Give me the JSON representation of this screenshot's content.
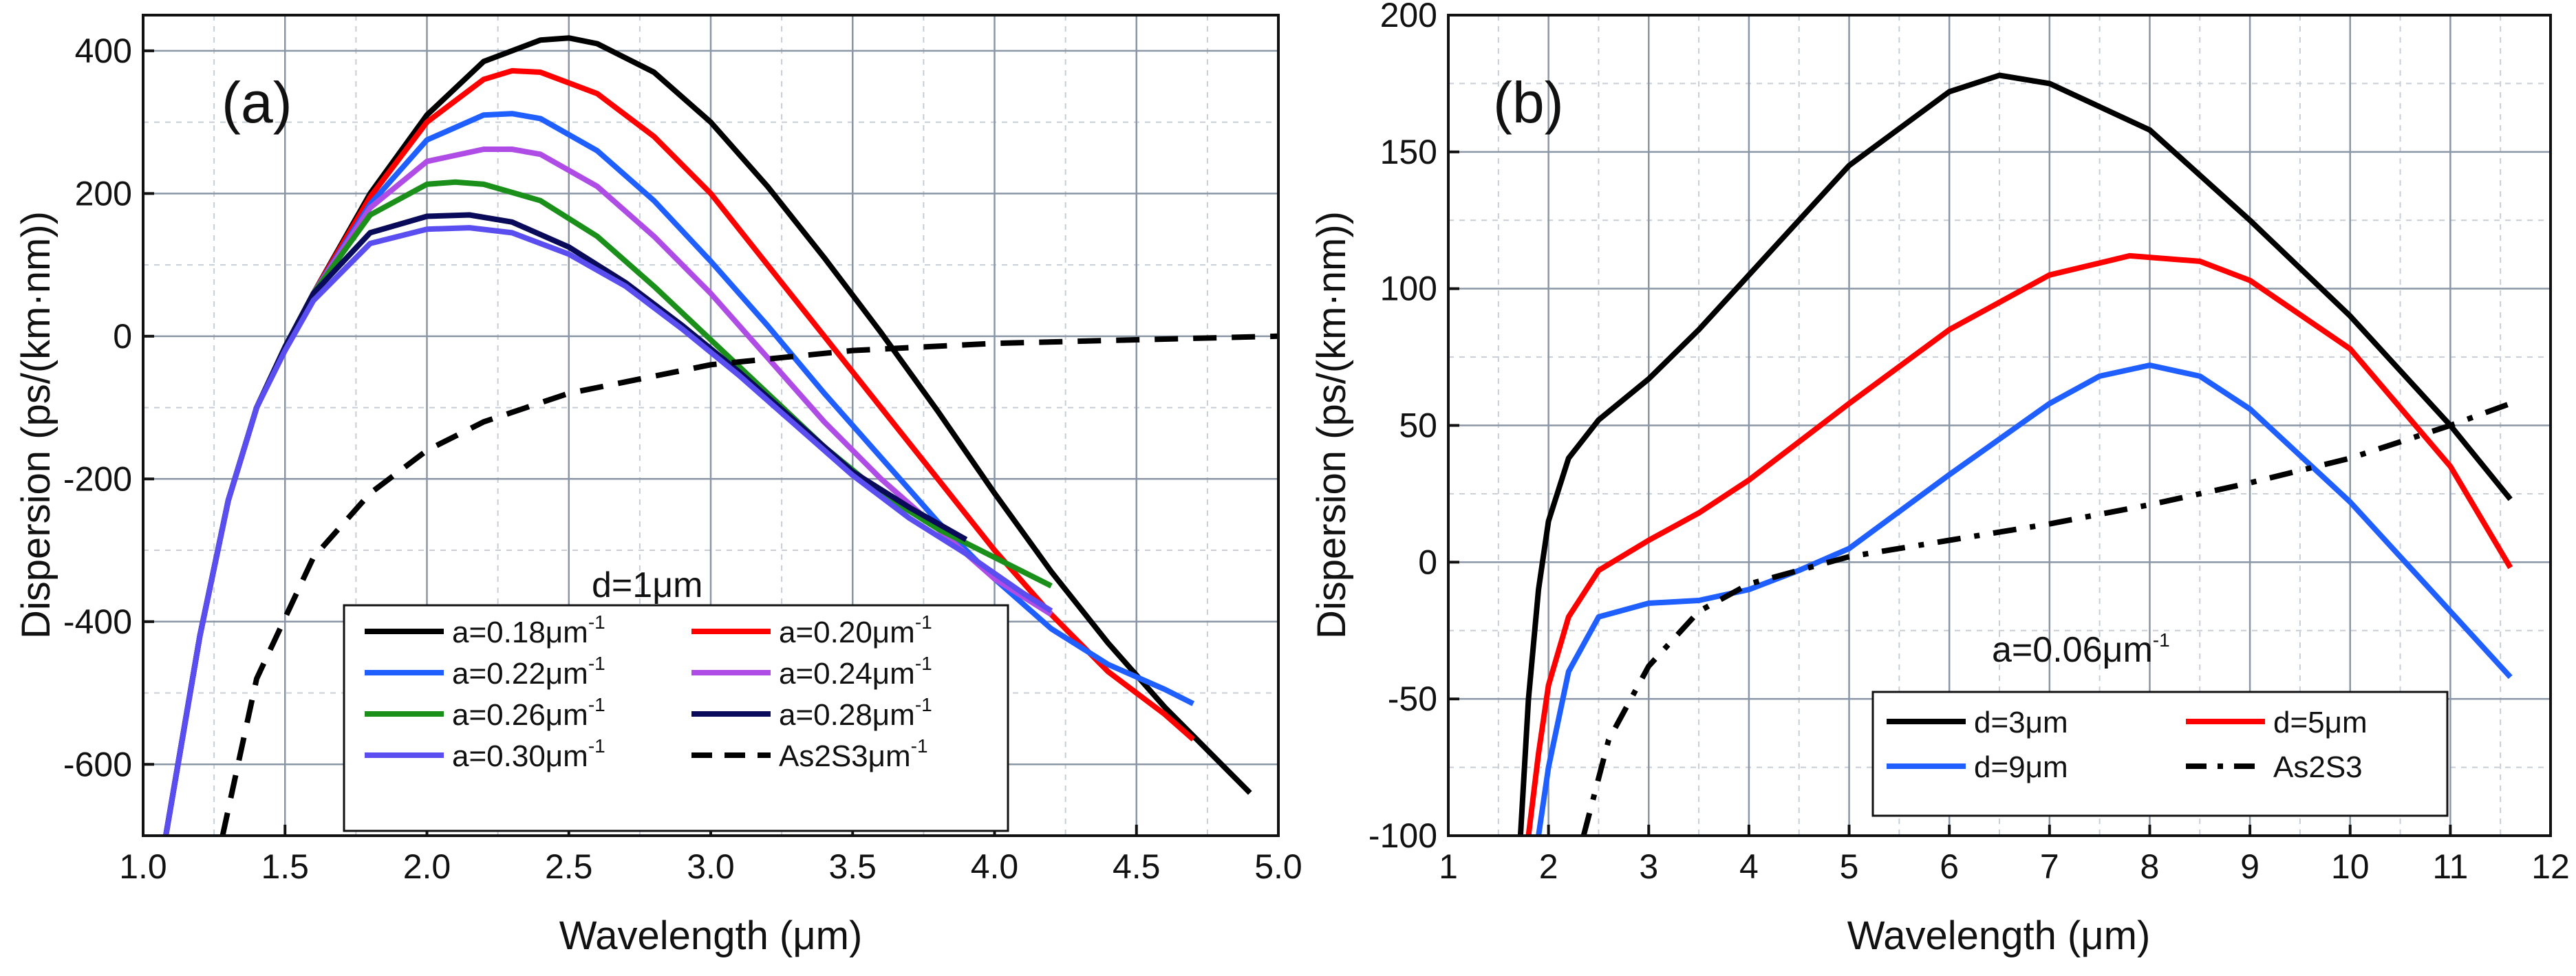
{
  "chart_data": [
    {
      "type": "line",
      "panel_label": "(a)",
      "xlabel": "Wavelength (μm)",
      "ylabel": "Dispersion (ps/(km·nm))",
      "xlim": [
        1.0,
        5.0
      ],
      "ylim": [
        -700,
        450
      ],
      "xticks": [
        "1.0",
        "1.5",
        "2.0",
        "2.5",
        "3.0",
        "3.5",
        "4.0",
        "4.5",
        "5.0"
      ],
      "yticks": [
        "-600",
        "-400",
        "-200",
        "0",
        "200",
        "400"
      ],
      "grid": true,
      "annotation": "d=1μm",
      "legend_position": "bottom-center",
      "series": [
        {
          "name": "a=0.18μm",
          "sup": "-1",
          "color": "#000000",
          "dash": "solid",
          "x": [
            1.08,
            1.2,
            1.3,
            1.4,
            1.5,
            1.6,
            1.8,
            2.0,
            2.2,
            2.4,
            2.5,
            2.6,
            2.8,
            3.0,
            3.2,
            3.4,
            3.6,
            3.8,
            4.0,
            4.2,
            4.4,
            4.6,
            4.8,
            4.9
          ],
          "y": [
            -700,
            -420,
            -230,
            -100,
            -15,
            60,
            200,
            310,
            385,
            415,
            418,
            410,
            370,
            300,
            210,
            110,
            5,
            -105,
            -220,
            -330,
            -430,
            -520,
            -600,
            -640
          ]
        },
        {
          "name": "a=0.20μm",
          "sup": "-1",
          "color": "#ff0000",
          "dash": "solid",
          "x": [
            1.08,
            1.2,
            1.3,
            1.4,
            1.5,
            1.6,
            1.8,
            2.0,
            2.2,
            2.3,
            2.4,
            2.6,
            2.8,
            3.0,
            3.2,
            3.4,
            3.6,
            3.8,
            4.0,
            4.2,
            4.4,
            4.6,
            4.7
          ],
          "y": [
            -700,
            -420,
            -230,
            -100,
            -15,
            60,
            195,
            300,
            360,
            372,
            370,
            340,
            280,
            200,
            100,
            0,
            -100,
            -200,
            -300,
            -390,
            -470,
            -530,
            -565
          ]
        },
        {
          "name": "a=0.22μm",
          "sup": "-1",
          "color": "#1f5fff",
          "dash": "solid",
          "x": [
            1.08,
            1.2,
            1.3,
            1.4,
            1.5,
            1.6,
            1.8,
            2.0,
            2.2,
            2.3,
            2.4,
            2.6,
            2.8,
            3.0,
            3.2,
            3.4,
            3.6,
            3.8,
            4.0,
            4.2,
            4.4,
            4.6,
            4.7
          ],
          "y": [
            -700,
            -420,
            -230,
            -100,
            -15,
            60,
            185,
            275,
            310,
            312,
            305,
            260,
            190,
            105,
            15,
            -80,
            -170,
            -260,
            -340,
            -410,
            -460,
            -495,
            -515
          ]
        },
        {
          "name": "a=0.24μm",
          "sup": "-1",
          "color": "#b04ce6",
          "dash": "solid",
          "x": [
            1.08,
            1.2,
            1.3,
            1.4,
            1.5,
            1.6,
            1.8,
            2.0,
            2.2,
            2.3,
            2.4,
            2.6,
            2.8,
            3.0,
            3.2,
            3.4,
            3.6,
            3.8,
            4.0,
            4.2
          ],
          "y": [
            -700,
            -420,
            -230,
            -100,
            -15,
            60,
            180,
            245,
            262,
            262,
            255,
            210,
            140,
            60,
            -30,
            -120,
            -200,
            -270,
            -340,
            -390
          ]
        },
        {
          "name": "a=0.26μm",
          "sup": "-1",
          "color": "#1a8f1a",
          "dash": "solid",
          "x": [
            1.08,
            1.2,
            1.3,
            1.4,
            1.5,
            1.6,
            1.8,
            2.0,
            2.1,
            2.2,
            2.4,
            2.6,
            2.8,
            3.0,
            3.2,
            3.4,
            3.6,
            3.8,
            4.0,
            4.2
          ],
          "y": [
            -700,
            -420,
            -230,
            -100,
            -15,
            60,
            170,
            213,
            216,
            213,
            190,
            140,
            70,
            -5,
            -80,
            -155,
            -220,
            -270,
            -310,
            -350
          ]
        },
        {
          "name": "a=0.28μm",
          "sup": "-1",
          "color": "#0a0a5a",
          "dash": "solid",
          "x": [
            1.08,
            1.2,
            1.3,
            1.4,
            1.5,
            1.6,
            1.8,
            2.0,
            2.15,
            2.3,
            2.5,
            2.7,
            2.9,
            3.1,
            3.3,
            3.5,
            3.7,
            3.9
          ],
          "y": [
            -700,
            -420,
            -230,
            -100,
            -15,
            60,
            145,
            168,
            170,
            160,
            125,
            75,
            15,
            -50,
            -120,
            -190,
            -240,
            -285
          ]
        },
        {
          "name": "a=0.30μm",
          "sup": "-1",
          "color": "#5a4ef0",
          "dash": "solid",
          "x": [
            1.08,
            1.2,
            1.3,
            1.4,
            1.5,
            1.6,
            1.8,
            2.0,
            2.15,
            2.3,
            2.5,
            2.7,
            2.9,
            3.1,
            3.3,
            3.5,
            3.7,
            3.9,
            4.1,
            4.2
          ],
          "y": [
            -700,
            -420,
            -230,
            -100,
            -20,
            50,
            130,
            150,
            152,
            145,
            115,
            70,
            10,
            -55,
            -125,
            -195,
            -255,
            -305,
            -360,
            -385
          ]
        },
        {
          "name": "As2S3μm",
          "sup": "-1",
          "color": "#000000",
          "dash": "dashed",
          "x": [
            1.28,
            1.4,
            1.6,
            1.8,
            2.0,
            2.2,
            2.5,
            3.0,
            3.5,
            4.0,
            4.5,
            5.0
          ],
          "y": [
            -700,
            -480,
            -310,
            -220,
            -160,
            -120,
            -80,
            -40,
            -20,
            -10,
            -5,
            0
          ]
        }
      ]
    },
    {
      "type": "line",
      "panel_label": "(b)",
      "xlabel": "Wavelength (μm)",
      "ylabel": "Dispersion (ps/(km·nm))",
      "xlim": [
        1,
        12
      ],
      "ylim": [
        -100,
        200
      ],
      "xticks": [
        "1",
        "2",
        "3",
        "4",
        "5",
        "6",
        "7",
        "8",
        "9",
        "10",
        "11",
        "12"
      ],
      "yticks": [
        "-100",
        "-50",
        "0",
        "50",
        "100",
        "150",
        "200"
      ],
      "grid": true,
      "annotation": "a=0.06μm",
      "annotation_sup": "-1",
      "legend_position": "bottom-right",
      "series": [
        {
          "name": "d=3μm",
          "color": "#000000",
          "dash": "solid",
          "x": [
            1.72,
            1.8,
            1.9,
            2.0,
            2.2,
            2.5,
            3.0,
            3.5,
            4.0,
            5.0,
            6.0,
            6.5,
            7.0,
            8.0,
            9.0,
            10.0,
            11.0,
            11.6
          ],
          "y": [
            -100,
            -50,
            -10,
            15,
            38,
            52,
            67,
            85,
            105,
            145,
            172,
            178,
            175,
            158,
            125,
            90,
            50,
            23
          ]
        },
        {
          "name": "d=5μm",
          "color": "#ff0000",
          "dash": "solid",
          "x": [
            1.8,
            1.9,
            2.0,
            2.2,
            2.5,
            3.0,
            3.5,
            4.0,
            5.0,
            6.0,
            7.0,
            7.8,
            8.5,
            9.0,
            10.0,
            11.0,
            11.6
          ],
          "y": [
            -100,
            -70,
            -45,
            -20,
            -3,
            8,
            18,
            30,
            58,
            85,
            105,
            112,
            110,
            103,
            78,
            35,
            -2
          ]
        },
        {
          "name": "d=9μm",
          "color": "#1f5fff",
          "dash": "solid",
          "x": [
            1.9,
            2.0,
            2.2,
            2.5,
            3.0,
            3.5,
            4.0,
            4.5,
            5.0,
            6.0,
            7.0,
            7.5,
            8.0,
            8.5,
            9.0,
            10.0,
            11.0,
            11.6
          ],
          "y": [
            -100,
            -75,
            -40,
            -20,
            -15,
            -14,
            -10,
            -3,
            5,
            32,
            58,
            68,
            72,
            68,
            56,
            22,
            -18,
            -42
          ]
        },
        {
          "name": "As2S3",
          "color": "#000000",
          "dash": "dashdot",
          "x": [
            2.35,
            2.6,
            3.0,
            3.5,
            4.0,
            5.0,
            6.0,
            7.0,
            8.0,
            9.0,
            10.0,
            11.0,
            11.6
          ],
          "y": [
            -100,
            -65,
            -38,
            -18,
            -8,
            2,
            8,
            14,
            21,
            29,
            38,
            50,
            58
          ]
        }
      ]
    }
  ]
}
